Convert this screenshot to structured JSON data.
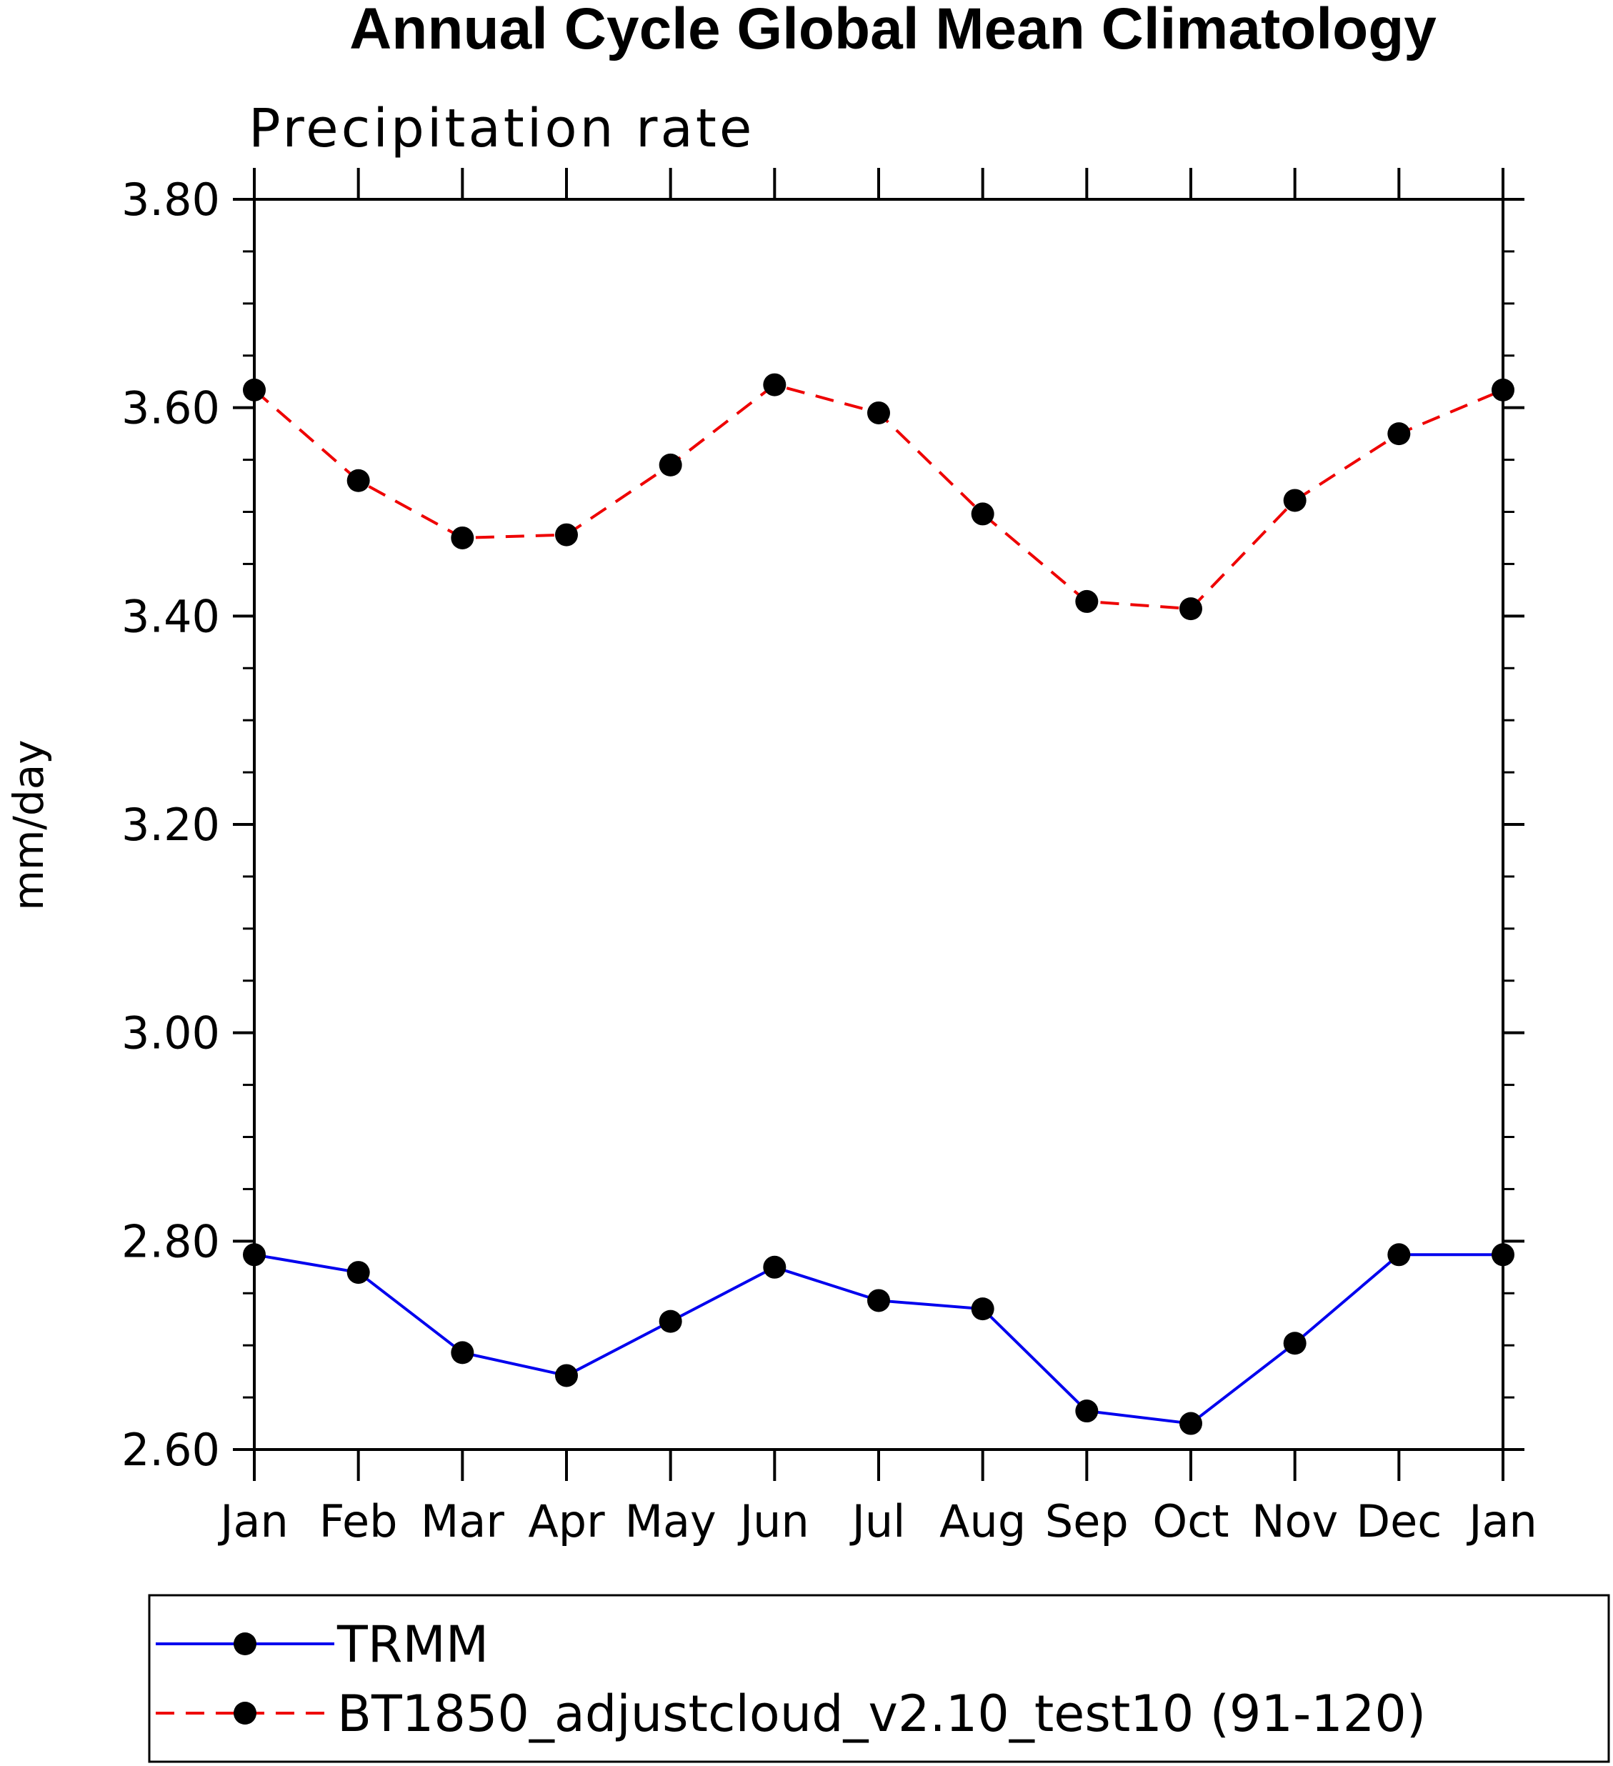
{
  "chart_data": {
    "type": "line",
    "title": "Annual Cycle Global Mean Climatology",
    "subtitle": "Precipitation rate",
    "ylabel": "mm/day",
    "xlabel": "",
    "categories": [
      "Jan",
      "Feb",
      "Mar",
      "Apr",
      "May",
      "Jun",
      "Jul",
      "Aug",
      "Sep",
      "Oct",
      "Nov",
      "Dec",
      "Jan"
    ],
    "ylim": [
      2.6,
      3.8
    ],
    "yticks": [
      "2.60",
      "2.80",
      "3.00",
      "3.20",
      "3.40",
      "3.60",
      "3.80"
    ],
    "grid": false,
    "legend_position": "bottom",
    "series": [
      {
        "name": "TRMM",
        "color": "#0000ee",
        "dash": "solid",
        "marker": "circle",
        "values": [
          2.787,
          2.77,
          2.693,
          2.671,
          2.723,
          2.775,
          2.743,
          2.735,
          2.637,
          2.625,
          2.702,
          2.787,
          2.787
        ]
      },
      {
        "name": "BT1850_adjustcloud_v2.10_test10 (91-120)",
        "color": "#ee0000",
        "dash": "dashed",
        "marker": "circle",
        "values": [
          3.617,
          3.53,
          3.475,
          3.478,
          3.545,
          3.622,
          3.595,
          3.498,
          3.414,
          3.407,
          3.511,
          3.575,
          3.617
        ]
      }
    ]
  }
}
